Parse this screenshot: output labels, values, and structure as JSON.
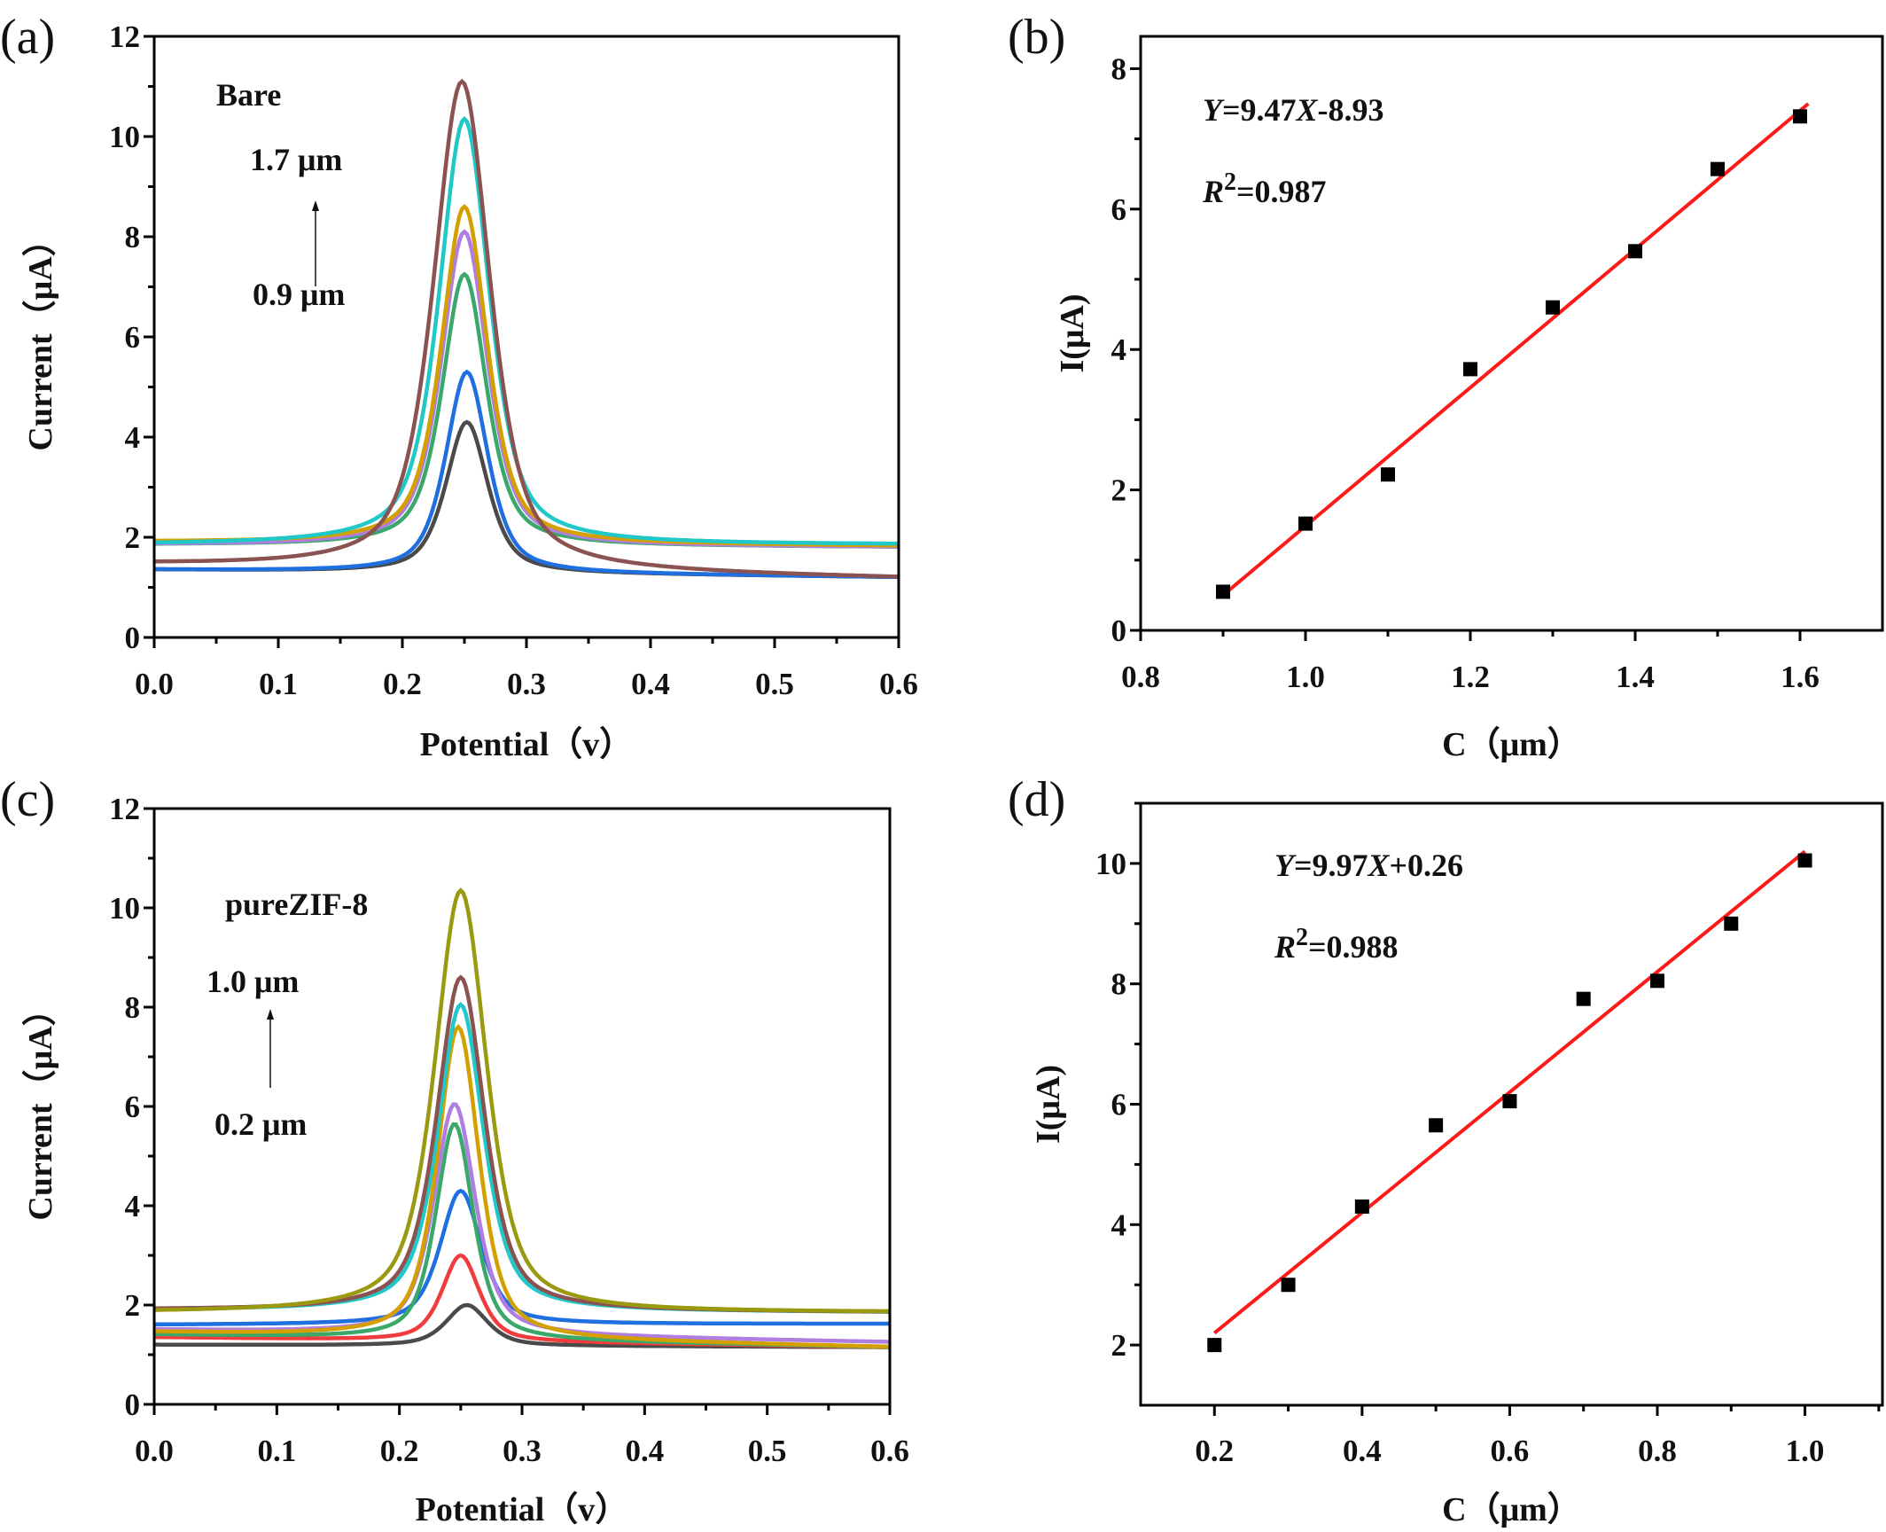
{
  "chart_data": [
    {
      "panel": "(a)",
      "type": "line",
      "xlabel": "Potential（v）",
      "ylabel": "Current（μA）",
      "xlim": [
        0,
        0.6
      ],
      "ylim": [
        0,
        12
      ],
      "xticks": [
        "0.0",
        "0.1",
        "0.2",
        "0.3",
        "0.4",
        "0.5",
        "0.6"
      ],
      "yticks": [
        "0",
        "2",
        "4",
        "6",
        "8",
        "10",
        "12"
      ],
      "grid": false,
      "annotations": {
        "sample": "Bare",
        "top": "1.7 μm",
        "bottom": "0.9 μm"
      },
      "series": [
        {
          "color": "#4a4a4a",
          "peak_x": 0.252,
          "peak_y": 4.3,
          "baseline_start": 1.35,
          "baseline_end": 1.2,
          "width": 0.02
        },
        {
          "color": "#1f6fe0",
          "peak_x": 0.252,
          "peak_y": 5.3,
          "baseline_start": 1.35,
          "baseline_end": 1.2,
          "width": 0.02
        },
        {
          "color": "#3aa86b",
          "peak_x": 0.25,
          "peak_y": 7.25,
          "baseline_start": 1.85,
          "baseline_end": 1.8,
          "width": 0.021
        },
        {
          "color": "#b07ee0",
          "peak_x": 0.25,
          "peak_y": 8.1,
          "baseline_start": 1.85,
          "baseline_end": 1.8,
          "width": 0.022
        },
        {
          "color": "#d4a000",
          "peak_x": 0.25,
          "peak_y": 8.6,
          "baseline_start": 1.9,
          "baseline_end": 1.82,
          "width": 0.022
        },
        {
          "color": "#20c8c8",
          "peak_x": 0.25,
          "peak_y": 10.35,
          "baseline_start": 1.85,
          "baseline_end": 1.85,
          "width": 0.024
        },
        {
          "color": "#8b5252",
          "peak_x": 0.248,
          "peak_y": 11.1,
          "baseline_start": 1.45,
          "baseline_end": 1.18,
          "width": 0.027
        }
      ]
    },
    {
      "panel": "(b)",
      "type": "scatter",
      "xlabel": "C（μm）",
      "ylabel": "I(μA)",
      "xlim": [
        0.8,
        1.7
      ],
      "ylim": [
        0,
        8.46
      ],
      "xticks": [
        "0.8",
        "1.0",
        "1.2",
        "1.4",
        "1.6"
      ],
      "yticks": [
        "0",
        "2",
        "4",
        "6",
        "8"
      ],
      "grid": false,
      "x": [
        0.9,
        1.0,
        1.1,
        1.2,
        1.3,
        1.4,
        1.5,
        1.6
      ],
      "y": [
        0.55,
        1.52,
        2.22,
        3.72,
        4.6,
        5.4,
        6.57,
        7.32
      ],
      "fit_line": {
        "x": [
          0.9,
          1.61
        ],
        "y": [
          0.5,
          7.5
        ],
        "color": "#ff1a1a"
      },
      "equation": "Y=9.47X-8.93",
      "r2": {
        "symbol": "R",
        "sup": "2",
        "value": "=0.987"
      }
    },
    {
      "panel": "(c)",
      "type": "line",
      "xlabel": "Potential（v）",
      "ylabel": "Current（μA）",
      "xlim": [
        0,
        0.6
      ],
      "ylim": [
        0,
        12
      ],
      "xticks": [
        "0.0",
        "0.1",
        "0.2",
        "0.3",
        "0.4",
        "0.5",
        "0.6"
      ],
      "yticks": [
        "0",
        "2",
        "4",
        "6",
        "8",
        "10",
        "12"
      ],
      "grid": false,
      "annotations": {
        "sample": "pureZIF-8",
        "top": "1.0 μm",
        "bottom": "0.2 μm"
      },
      "series": [
        {
          "color": "#4a4a4a",
          "peak_x": 0.255,
          "peak_y": 2.0,
          "baseline_start": 1.2,
          "baseline_end": 1.15,
          "width": 0.02
        },
        {
          "color": "#f03c3c",
          "peak_x": 0.25,
          "peak_y": 3.0,
          "baseline_start": 1.35,
          "baseline_end": 1.15,
          "width": 0.018
        },
        {
          "color": "#1f6fe0",
          "peak_x": 0.25,
          "peak_y": 4.3,
          "baseline_start": 1.6,
          "baseline_end": 1.62,
          "width": 0.02
        },
        {
          "color": "#3aa86b",
          "peak_x": 0.245,
          "peak_y": 5.65,
          "baseline_start": 1.4,
          "baseline_end": 1.15,
          "width": 0.018
        },
        {
          "color": "#b07ee0",
          "peak_x": 0.245,
          "peak_y": 6.05,
          "baseline_start": 1.5,
          "baseline_end": 1.25,
          "width": 0.02
        },
        {
          "color": "#d4a000",
          "peak_x": 0.248,
          "peak_y": 7.6,
          "baseline_start": 1.45,
          "baseline_end": 1.15,
          "width": 0.02
        },
        {
          "color": "#20c8c8",
          "peak_x": 0.25,
          "peak_y": 8.05,
          "baseline_start": 1.9,
          "baseline_end": 1.85,
          "width": 0.022
        },
        {
          "color": "#8b5252",
          "peak_x": 0.25,
          "peak_y": 8.6,
          "baseline_start": 1.9,
          "baseline_end": 1.85,
          "width": 0.023
        },
        {
          "color": "#9a9a10",
          "peak_x": 0.25,
          "peak_y": 10.35,
          "baseline_start": 1.85,
          "baseline_end": 1.85,
          "width": 0.025
        }
      ]
    },
    {
      "panel": "(d)",
      "type": "scatter",
      "xlabel": "C（μm）",
      "ylabel": "I(μA)",
      "xlim": [
        0.1,
        1.105
      ],
      "ylim": [
        1.0,
        11.0
      ],
      "xticks": [
        "0.2",
        "0.4",
        "0.6",
        "0.8",
        "1.0"
      ],
      "yticks": [
        "2",
        "4",
        "6",
        "8",
        "10"
      ],
      "grid": false,
      "x": [
        0.2,
        0.3,
        0.4,
        0.5,
        0.6,
        0.7,
        0.8,
        0.9,
        1.0
      ],
      "y": [
        2.0,
        3.0,
        4.3,
        5.65,
        6.05,
        7.75,
        8.05,
        9.0,
        10.05
      ],
      "fit_line": {
        "x": [
          0.2,
          1.0
        ],
        "y": [
          2.2,
          10.2
        ],
        "color": "#ff1a1a"
      },
      "equation": "Y=9.97X+0.26",
      "r2": {
        "symbol": "R",
        "sup": "2",
        "value": "=0.988"
      }
    }
  ]
}
